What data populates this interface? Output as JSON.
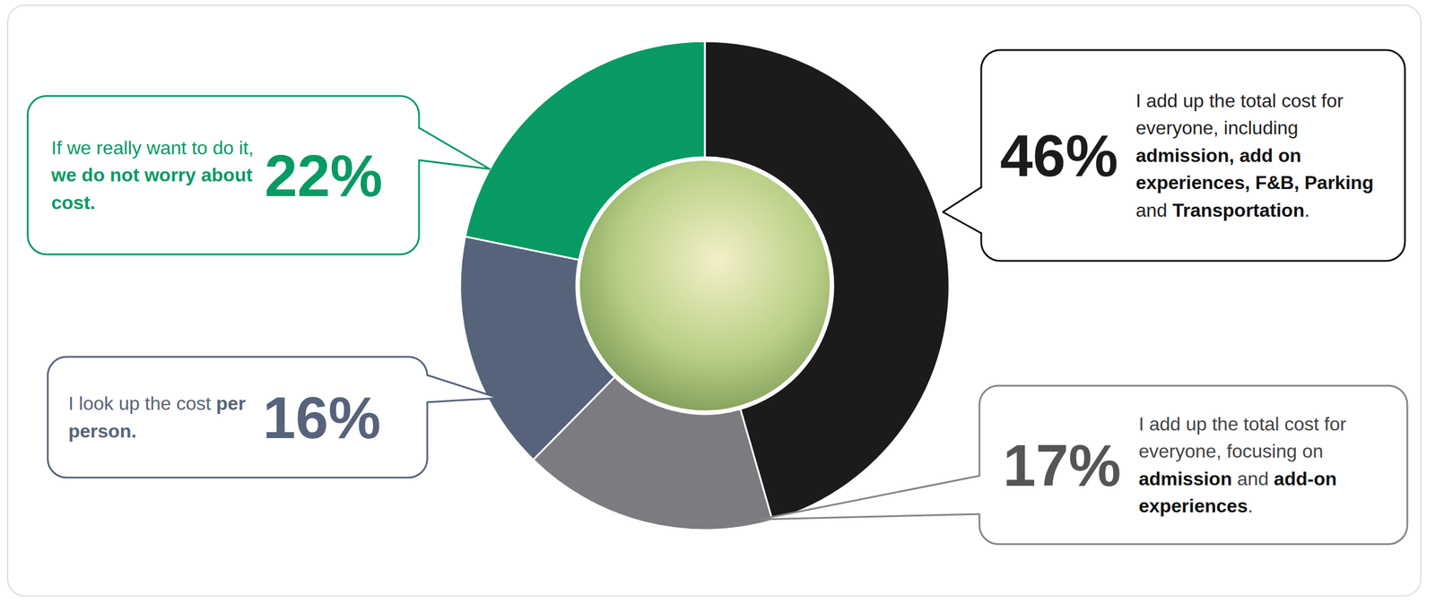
{
  "chart_data": {
    "type": "donut",
    "categories": [
      "I add up the total cost for everyone, including admission, add on experiences, F&B, Parking and Transportation.",
      "I add up the total cost for everyone, focusing on admission and add-on experiences.",
      "I look up the cost per person.",
      "If we really want to do it, we do not worry about cost."
    ],
    "emphasis": [
      [
        "admission, add on experiences, F&B,",
        "Parking",
        "Transportation"
      ],
      [
        "admission",
        "add-on experiences"
      ],
      [
        "per person."
      ],
      [
        "we do not worry about cost."
      ]
    ],
    "values": [
      46,
      17,
      16,
      22
    ],
    "value_labels": [
      "46%",
      "17%",
      "16%",
      "22%"
    ],
    "colors": [
      "#1b1b1b",
      "#7b7b80",
      "#57637a",
      "#079a63"
    ],
    "data_labels": true
  }
}
